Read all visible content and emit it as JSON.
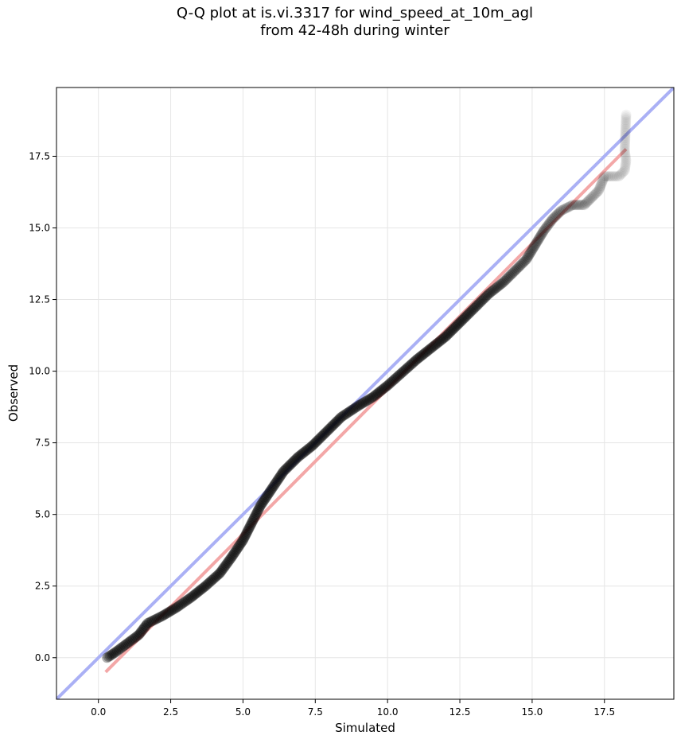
{
  "chart_data": {
    "type": "scatter",
    "title": "Q-Q plot at is.vi.3317 for wind_speed_at_10m_agl",
    "subtitle": "from 42-48h during winter",
    "xlabel": "Simulated",
    "ylabel": "Observed",
    "xlim": [
      -1.45,
      19.9
    ],
    "ylim": [
      -1.45,
      19.9
    ],
    "x_ticks": [
      "0.0",
      "2.5",
      "5.0",
      "7.5",
      "10.0",
      "12.5",
      "15.0",
      "17.5"
    ],
    "y_ticks": [
      "0.0",
      "2.5",
      "5.0",
      "7.5",
      "10.0",
      "12.5",
      "15.0",
      "17.5"
    ],
    "grid": true,
    "reference_line": {
      "description": "1:1 line",
      "color": "#aab0f5",
      "slope": 1,
      "intercept": 0
    },
    "fit_line": {
      "color": "#f3a7a7",
      "points": [
        [
          0.25,
          -0.5
        ],
        [
          18.25,
          17.75
        ]
      ]
    },
    "quantile_curve": [
      [
        0.3,
        0.0
      ],
      [
        0.6,
        0.2
      ],
      [
        1.0,
        0.5
      ],
      [
        1.4,
        0.8
      ],
      [
        1.7,
        1.2
      ],
      [
        2.2,
        1.45
      ],
      [
        2.7,
        1.75
      ],
      [
        3.2,
        2.1
      ],
      [
        3.7,
        2.5
      ],
      [
        4.2,
        2.95
      ],
      [
        4.6,
        3.5
      ],
      [
        5.0,
        4.1
      ],
      [
        5.3,
        4.7
      ],
      [
        5.6,
        5.3
      ],
      [
        6.0,
        5.9
      ],
      [
        6.4,
        6.5
      ],
      [
        6.9,
        7.0
      ],
      [
        7.4,
        7.4
      ],
      [
        7.9,
        7.9
      ],
      [
        8.4,
        8.4
      ],
      [
        9.0,
        8.8
      ],
      [
        9.5,
        9.1
      ],
      [
        10.0,
        9.5
      ],
      [
        10.5,
        9.95
      ],
      [
        11.0,
        10.4
      ],
      [
        11.5,
        10.8
      ],
      [
        12.0,
        11.2
      ],
      [
        12.5,
        11.7
      ],
      [
        13.0,
        12.2
      ],
      [
        13.5,
        12.7
      ],
      [
        14.0,
        13.1
      ],
      [
        14.4,
        13.5
      ],
      [
        14.8,
        13.9
      ],
      [
        15.1,
        14.4
      ],
      [
        15.4,
        14.9
      ],
      [
        15.7,
        15.3
      ],
      [
        16.0,
        15.6
      ],
      [
        16.4,
        15.8
      ],
      [
        16.8,
        15.8
      ],
      [
        17.3,
        16.3
      ],
      [
        17.5,
        16.8
      ],
      [
        18.0,
        16.8
      ],
      [
        18.2,
        17.0
      ],
      [
        18.25,
        17.35
      ],
      [
        18.2,
        17.7
      ],
      [
        18.25,
        18.95
      ]
    ]
  }
}
